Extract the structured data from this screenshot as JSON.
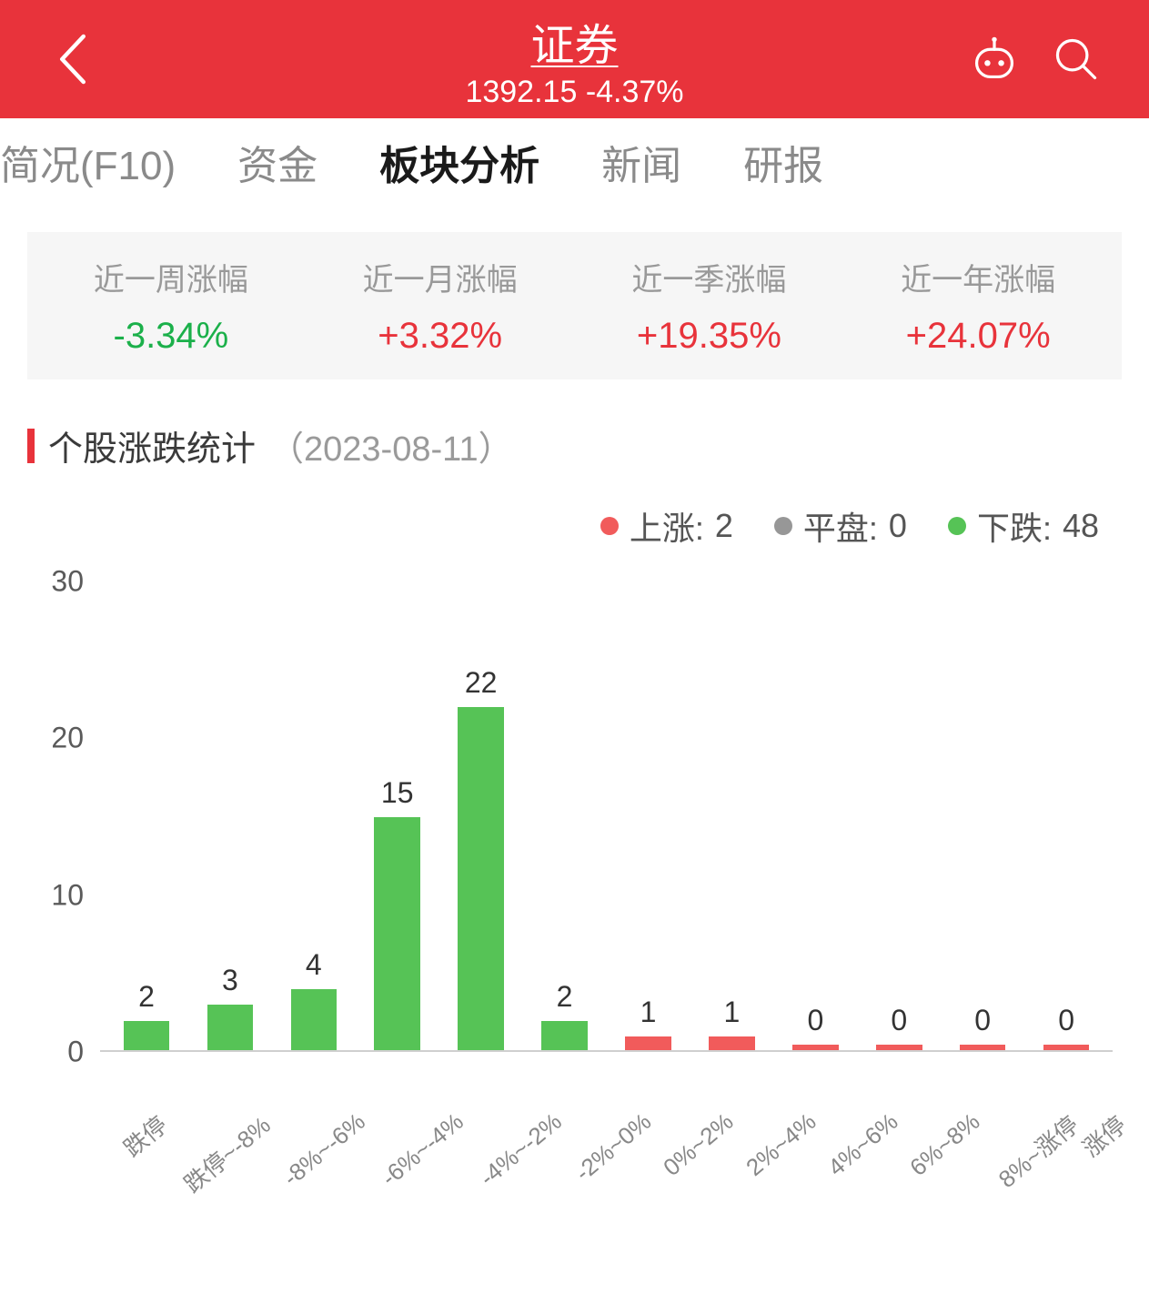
{
  "header": {
    "title": "证券",
    "index_value": "1392.15",
    "change_pct": "-4.37%",
    "accent_color": "#e8333b"
  },
  "tabs": [
    {
      "label": "简况(F10)",
      "active": false
    },
    {
      "label": "资金",
      "active": false
    },
    {
      "label": "板块分析",
      "active": true
    },
    {
      "label": "新闻",
      "active": false
    },
    {
      "label": "研报",
      "active": false
    }
  ],
  "period_stats": [
    {
      "label": "近一周涨幅",
      "value": "-3.34%",
      "direction": "down"
    },
    {
      "label": "近一月涨幅",
      "value": "+3.32%",
      "direction": "up"
    },
    {
      "label": "近一季涨幅",
      "value": "+19.35%",
      "direction": "up"
    },
    {
      "label": "近一年涨幅",
      "value": "+24.07%",
      "direction": "up"
    }
  ],
  "section": {
    "title": "个股涨跌统计",
    "date": "（2023-08-11）"
  },
  "legend": {
    "up": {
      "label": "上涨:",
      "value": "2",
      "color": "#f15b5b"
    },
    "flat": {
      "label": "平盘:",
      "value": "0",
      "color": "#979797"
    },
    "down": {
      "label": "下跌:",
      "value": "48",
      "color": "#56c356"
    }
  },
  "chart": {
    "type": "bar",
    "ymax": 30,
    "yticks": [
      0,
      10,
      20,
      30
    ],
    "background_color": "#ffffff",
    "baseline_color": "#cfcfcf",
    "value_fontsize": 32,
    "xlabel_fontsize": 26,
    "xlabel_color": "#888888",
    "xlabel_rotation_deg": -40,
    "bar_width_pct": 55,
    "colors": {
      "up": "#f15b5b",
      "down": "#56c356"
    },
    "categories": [
      "跌停",
      "跌停~-8%",
      "-8%~-6%",
      "-6%~-4%",
      "-4%~-2%",
      "-2%~0%",
      "0%~2%",
      "2%~4%",
      "4%~6%",
      "6%~8%",
      "8%~涨停",
      "涨停"
    ],
    "values": [
      2,
      3,
      4,
      15,
      22,
      2,
      1,
      1,
      0,
      0,
      0,
      0
    ],
    "directions": [
      "down",
      "down",
      "down",
      "down",
      "down",
      "down",
      "up",
      "up",
      "up",
      "up",
      "up",
      "up"
    ]
  }
}
